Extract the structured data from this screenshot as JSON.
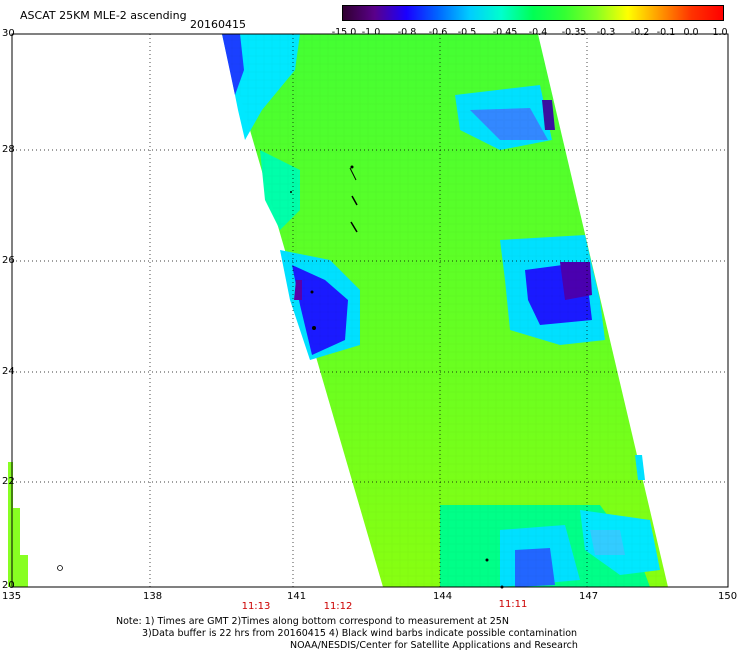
{
  "title": "ASCAT 25KM MLE-2 ascending",
  "date": "20160415",
  "colorbar": {
    "labels": [
      "-15.0",
      "-1.0",
      "-0.8",
      "-0.6",
      "-0.5",
      "-0.45",
      "-0.4",
      "-0.35",
      "-0.3",
      "-0.2",
      "-0.1",
      "0.0",
      "1.0"
    ],
    "colors": [
      "#300030",
      "#5a008a",
      "#1a00ff",
      "#0066ff",
      "#00ccff",
      "#00ffcc",
      "#00ff55",
      "#33ff33",
      "#88ff22",
      "#ffff00",
      "#ff9900",
      "#ff3300",
      "#ff0000"
    ]
  },
  "axes": {
    "lat_labels": [
      "30",
      "28",
      "26",
      "24",
      "22",
      "20"
    ],
    "lon_labels": [
      "135",
      "138",
      "141",
      "144",
      "147",
      "150"
    ]
  },
  "times": [
    "11:13",
    "11:12",
    "11:11"
  ],
  "notes": [
    "Note: 1) Times are GMT 2)Times along bottom correspond to measurement at 25N",
    "3)Data buffer is 22 hrs from 20160415 4) Black wind barbs indicate possible contamination",
    "NOAA/NESDIS/Center for Satellite Applications and Research"
  ]
}
